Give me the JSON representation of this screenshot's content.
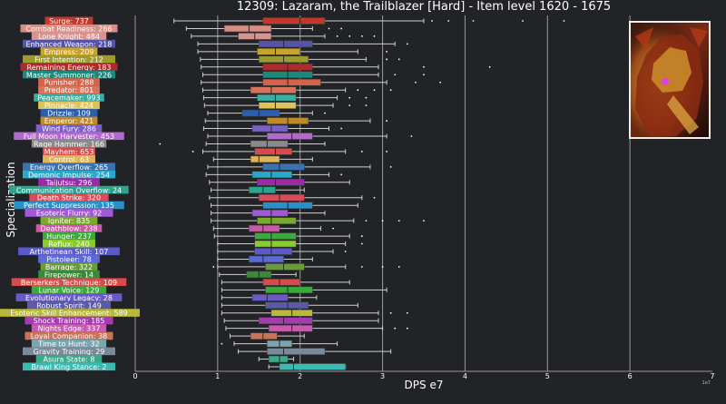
{
  "chart_data": {
    "type": "boxplot",
    "title": "12309: Lazaram, the Trailblazer [Hard] - Item level 1620 - 1675",
    "xlabel": "DPS e7",
    "ylabel": "Specialization",
    "x_offset_text": "1e7",
    "xlim": [
      0,
      7
    ],
    "x_ticks": [
      0,
      1,
      2,
      3,
      4,
      5,
      6,
      7
    ],
    "grid": "vertical",
    "portrait_icon": "armored-demon-warrior-portrait",
    "colors": {
      "background": "#212326",
      "grid": "#9a9a9a",
      "text": "#ffffff",
      "whisker": "#d0d0d0",
      "median": "#2a2a2a"
    },
    "series": [
      {
        "label": "Surge: 737",
        "color": "#c0392b",
        "min": 0.47,
        "q1": 1.55,
        "median": 2.0,
        "q3": 2.3,
        "max": 3.5,
        "outliers": [
          3.6,
          3.8,
          4.1,
          4.7,
          5.2
        ]
      },
      {
        "label": "Combat Readiness: 266",
        "color": "#d98e84",
        "min": 0.62,
        "q1": 1.08,
        "median": 1.38,
        "q3": 1.65,
        "max": 2.15,
        "outliers": [
          2.35,
          2.5
        ]
      },
      {
        "label": "Lone Knight: 484",
        "color": "#d9938f",
        "min": 0.68,
        "q1": 1.25,
        "median": 1.45,
        "q3": 1.65,
        "max": 2.3,
        "outliers": [
          2.45,
          2.6,
          2.75,
          2.9
        ]
      },
      {
        "label": "Enhanced Weapon: 218",
        "color": "#5553a8",
        "min": 0.76,
        "q1": 1.5,
        "median": 1.8,
        "q3": 2.15,
        "max": 3.15,
        "outliers": [
          3.3
        ]
      },
      {
        "label": "Empress: 209",
        "color": "#c9a227",
        "min": 0.76,
        "q1": 1.48,
        "median": 1.7,
        "q3": 2.0,
        "max": 2.7,
        "outliers": [
          3.05
        ]
      },
      {
        "label": "First Intention: 212",
        "color": "#9c9c2d",
        "min": 0.79,
        "q1": 1.5,
        "median": 1.8,
        "q3": 2.1,
        "max": 2.8,
        "outliers": [
          3.05,
          3.2
        ]
      },
      {
        "label": "Remaining Energy: 183",
        "color": "#b02a2a",
        "min": 0.8,
        "q1": 1.55,
        "median": 1.85,
        "q3": 2.15,
        "max": 2.95,
        "outliers": [
          3.5,
          4.3
        ]
      },
      {
        "label": "Master Summoner: 226",
        "color": "#1a8a7a",
        "min": 0.82,
        "q1": 1.55,
        "median": 1.85,
        "q3": 2.15,
        "max": 2.95,
        "outliers": [
          3.15,
          3.5
        ]
      },
      {
        "label": "Punisher: 288",
        "color": "#d4634a",
        "min": 0.8,
        "q1": 1.55,
        "median": 1.85,
        "q3": 2.25,
        "max": 3.05,
        "outliers": [
          3.4,
          3.7
        ]
      },
      {
        "label": "Predator: 801",
        "color": "#d9735a",
        "min": 0.82,
        "q1": 1.4,
        "median": 1.65,
        "q3": 1.95,
        "max": 2.55,
        "outliers": [
          2.7,
          2.9,
          3.1
        ]
      },
      {
        "label": "Peacemaker: 993",
        "color": "#3aaea0",
        "min": 0.83,
        "q1": 1.48,
        "median": 1.7,
        "q3": 1.95,
        "max": 2.45,
        "outliers": [
          2.6,
          2.8
        ]
      },
      {
        "label": "Pinnacle: 424",
        "color": "#e0c35a",
        "min": 0.84,
        "q1": 1.5,
        "median": 1.7,
        "q3": 1.95,
        "max": 2.4,
        "outliers": [
          2.6,
          2.8
        ]
      },
      {
        "label": "Drizzle: 109",
        "color": "#2a5fb0",
        "min": 0.88,
        "q1": 1.3,
        "median": 1.5,
        "q3": 1.75,
        "max": 2.15,
        "outliers": [
          2.3
        ]
      },
      {
        "label": "Emperor: 421",
        "color": "#c08a27",
        "min": 0.85,
        "q1": 1.6,
        "median": 1.85,
        "q3": 2.1,
        "max": 2.85,
        "outliers": [
          3.05
        ]
      },
      {
        "label": "Wind Fury: 286",
        "color": "#7b5fc9",
        "min": 0.83,
        "q1": 1.42,
        "median": 1.65,
        "q3": 1.85,
        "max": 2.35,
        "outliers": [
          2.5
        ]
      },
      {
        "label": "Full Moon Harvester: 453",
        "color": "#b06ac9",
        "min": 0.88,
        "q1": 1.6,
        "median": 1.9,
        "q3": 2.15,
        "max": 3.05,
        "outliers": [
          3.35
        ]
      },
      {
        "label": "Rage Hammer: 166",
        "color": "#8a8a8a",
        "min": 0.86,
        "q1": 1.4,
        "median": 1.6,
        "q3": 1.85,
        "max": 2.3,
        "outliers": [
          0.3
        ]
      },
      {
        "label": "Mayhem: 653",
        "color": "#d94a4a",
        "min": 0.82,
        "q1": 1.45,
        "median": 1.7,
        "q3": 1.9,
        "max": 2.55,
        "outliers": [
          0.7,
          2.75,
          3.05
        ]
      },
      {
        "label": "Control: 63",
        "color": "#e0b55a",
        "min": 0.95,
        "q1": 1.4,
        "median": 1.5,
        "q3": 1.75,
        "max": 2.15,
        "outliers": []
      },
      {
        "label": "Energy Overflow: 265",
        "color": "#3a72b0",
        "min": 0.88,
        "q1": 1.55,
        "median": 1.75,
        "q3": 2.05,
        "max": 2.85,
        "outliers": [
          3.1
        ]
      },
      {
        "label": "Demonic Impulse: 254",
        "color": "#2aa7c9",
        "min": 0.86,
        "q1": 1.42,
        "median": 1.65,
        "q3": 1.9,
        "max": 2.35,
        "outliers": [
          2.5
        ]
      },
      {
        "label": "Taijutsu: 296",
        "color": "#9a2aa6",
        "min": 0.9,
        "q1": 1.48,
        "median": 1.7,
        "q3": 2.05,
        "max": 2.6,
        "outliers": []
      },
      {
        "label": "Communication Overflow: 24",
        "color": "#2aa690",
        "min": 0.92,
        "q1": 1.38,
        "median": 1.55,
        "q3": 1.7,
        "max": 2.05,
        "outliers": []
      },
      {
        "label": "Death Strike: 320",
        "color": "#d94a5a",
        "min": 0.9,
        "q1": 1.5,
        "median": 1.75,
        "q3": 2.05,
        "max": 2.75,
        "outliers": [
          2.9
        ]
      },
      {
        "label": "Perfect Suppression: 135",
        "color": "#2a90c9",
        "min": 0.92,
        "q1": 1.55,
        "median": 1.85,
        "q3": 2.15,
        "max": 2.7,
        "outliers": []
      },
      {
        "label": "Esoteric Flurry: 92",
        "color": "#a05ad9",
        "min": 0.92,
        "q1": 1.42,
        "median": 1.65,
        "q3": 1.85,
        "max": 2.3,
        "outliers": []
      },
      {
        "label": "Igniter: 835",
        "color": "#7aaa2a",
        "min": 0.92,
        "q1": 1.48,
        "median": 1.65,
        "q3": 1.95,
        "max": 2.65,
        "outliers": [
          2.8,
          3.0,
          3.2,
          3.5
        ]
      },
      {
        "label": "Deathblow: 238",
        "color": "#c95aa6",
        "min": 0.95,
        "q1": 1.38,
        "median": 1.55,
        "q3": 1.75,
        "max": 2.25,
        "outliers": [
          2.4
        ]
      },
      {
        "label": "Hunger: 237",
        "color": "#3aaa3a",
        "min": 0.96,
        "q1": 1.45,
        "median": 1.65,
        "q3": 1.95,
        "max": 2.6,
        "outliers": [
          2.75
        ]
      },
      {
        "label": "Reflux: 240",
        "color": "#8acc2a",
        "min": 1.0,
        "q1": 1.45,
        "median": 1.65,
        "q3": 1.95,
        "max": 2.55,
        "outliers": [
          2.75
        ]
      },
      {
        "label": "Arthetinean Skill: 107",
        "color": "#5a5ac9",
        "min": 1.0,
        "q1": 1.45,
        "median": 1.65,
        "q3": 1.9,
        "max": 2.4,
        "outliers": [
          2.55
        ]
      },
      {
        "label": "Pistoleer: 78",
        "color": "#5a6ad9",
        "min": 1.0,
        "q1": 1.38,
        "median": 1.55,
        "q3": 1.8,
        "max": 2.15,
        "outliers": []
      },
      {
        "label": "Barrage: 322",
        "color": "#6a9a3a",
        "min": 1.0,
        "q1": 1.58,
        "median": 1.8,
        "q3": 2.05,
        "max": 2.55,
        "outliers": [
          0.95,
          2.75,
          3.0,
          3.2
        ]
      },
      {
        "label": "Firepower: 14",
        "color": "#3a8a3a",
        "min": 1.02,
        "q1": 1.35,
        "median": 1.5,
        "q3": 1.65,
        "max": 1.95,
        "outliers": []
      },
      {
        "label": "Berserkers Technique: 109",
        "color": "#d94a4a",
        "min": 1.05,
        "q1": 1.55,
        "median": 1.75,
        "q3": 2.0,
        "max": 2.6,
        "outliers": []
      },
      {
        "label": "Lunar Voice: 129",
        "color": "#3aaa3a",
        "min": 1.05,
        "q1": 1.58,
        "median": 1.85,
        "q3": 2.15,
        "max": 3.05,
        "outliers": []
      },
      {
        "label": "Evolutionary Legacy: 28",
        "color": "#6a5ac9",
        "min": 1.05,
        "q1": 1.42,
        "median": 1.6,
        "q3": 1.85,
        "max": 2.2,
        "outliers": []
      },
      {
        "label": "Robust Spirit: 149",
        "color": "#5a5aa6",
        "min": 1.05,
        "q1": 1.58,
        "median": 1.85,
        "q3": 2.1,
        "max": 2.7,
        "outliers": []
      },
      {
        "label": "Esoteric Skill Enhancement: 589",
        "color": "#b8b83a",
        "min": 1.05,
        "q1": 1.65,
        "median": 1.9,
        "q3": 2.15,
        "max": 2.95,
        "outliers": [
          3.1,
          3.3
        ]
      },
      {
        "label": "Shock Training: 185",
        "color": "#a63ab0",
        "min": 1.08,
        "q1": 1.5,
        "median": 1.8,
        "q3": 2.15,
        "max": 2.95,
        "outliers": []
      },
      {
        "label": "Nights Edge: 337",
        "color": "#c95ab0",
        "min": 1.1,
        "q1": 1.62,
        "median": 1.9,
        "q3": 2.15,
        "max": 3.0,
        "outliers": [
          3.15,
          3.3
        ]
      },
      {
        "label": "Loyal Companion: 38",
        "color": "#c9735a",
        "min": 1.15,
        "q1": 1.4,
        "median": 1.55,
        "q3": 1.72,
        "max": 2.05,
        "outliers": []
      },
      {
        "label": "Time to Hunt: 32",
        "color": "#7aa6b0",
        "min": 1.2,
        "q1": 1.6,
        "median": 1.75,
        "q3": 1.9,
        "max": 2.45,
        "outliers": [
          1.05
        ]
      },
      {
        "label": "Gravity Training: 29",
        "color": "#7a8a9a",
        "min": 1.25,
        "q1": 1.6,
        "median": 1.8,
        "q3": 2.3,
        "max": 3.1,
        "outliers": []
      },
      {
        "label": "Asura State: 8",
        "color": "#3aaa8a",
        "min": 1.5,
        "q1": 1.62,
        "median": 1.75,
        "q3": 1.85,
        "max": 1.92,
        "outliers": []
      },
      {
        "label": "Brawl King Stance: 2",
        "color": "#3abab0",
        "min": 1.62,
        "q1": 1.75,
        "median": 1.92,
        "q3": 2.55,
        "max": 2.55,
        "outliers": []
      }
    ]
  }
}
